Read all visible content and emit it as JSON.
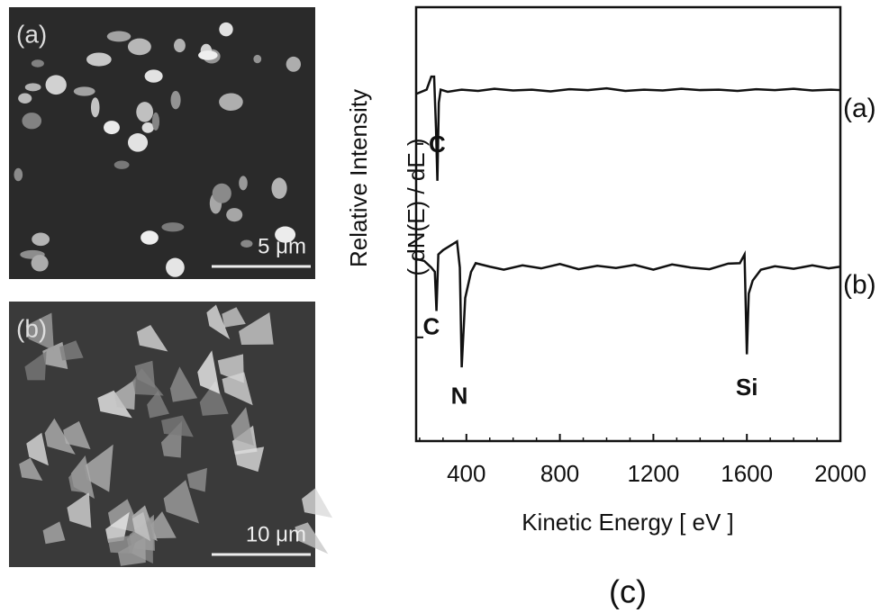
{
  "panels": [
    {
      "label": "(a)",
      "scale_bar": "5 μm"
    },
    {
      "label": "(b)",
      "scale_bar": "10 μm"
    }
  ],
  "chart_data": {
    "type": "line",
    "panel_label": "(c)",
    "x_label": "Kinetic Energy [ eV ]",
    "y_label": [
      "Relative Intensity",
      "( dN(E) / dE )"
    ],
    "xlim": [
      185,
      2000
    ],
    "xticks": [
      400,
      800,
      1200,
      1600,
      2000
    ],
    "xminorticks": [
      200,
      300,
      500,
      600,
      700,
      900,
      1000,
      1100,
      1300,
      1400,
      1500,
      1700,
      1800,
      1900
    ],
    "ylim": [
      0,
      100
    ],
    "yticks": [
      68.5,
      23.9
    ],
    "series": [
      {
        "name": "(a)",
        "color": "#111111",
        "x": [
          185,
          230,
          250,
          262,
          270,
          276,
          282,
          290,
          320,
          380,
          450,
          520,
          600,
          680,
          760,
          840,
          920,
          1000,
          1080,
          1160,
          1240,
          1320,
          1400,
          1480,
          1560,
          1640,
          1720,
          1800,
          1880,
          1960,
          2000
        ],
        "values": [
          80,
          81,
          84,
          84,
          72,
          60,
          78,
          81,
          80.5,
          81,
          80.7,
          81.2,
          80.8,
          81,
          80.6,
          81.1,
          80.9,
          81.3,
          80.7,
          81,
          80.8,
          81.2,
          80.9,
          81,
          80.7,
          81.1,
          80.9,
          81.2,
          80.8,
          81,
          80.9
        ]
      },
      {
        "name": "(b)",
        "color": "#111111",
        "x": [
          185,
          220,
          250,
          265,
          272,
          280,
          300,
          330,
          360,
          372,
          380,
          395,
          420,
          440,
          500,
          560,
          640,
          720,
          800,
          880,
          960,
          1040,
          1120,
          1200,
          1280,
          1360,
          1440,
          1520,
          1570,
          1590,
          1600,
          1608,
          1625,
          1660,
          1720,
          1800,
          1880,
          1950,
          2000
        ],
        "values": [
          42,
          41.5,
          40,
          39,
          30,
          43,
          44,
          45,
          46,
          40,
          17,
          33,
          39,
          41,
          40.2,
          39.5,
          40.5,
          39.8,
          40.8,
          39.6,
          40.4,
          39.9,
          40.6,
          39.5,
          40.7,
          40,
          39.6,
          40.9,
          41,
          43,
          20,
          34,
          37,
          39.5,
          40.3,
          39.7,
          40.5,
          39.8,
          40.2
        ]
      }
    ],
    "annotations": [
      {
        "text": "C",
        "x": 275,
        "y": 68
      },
      {
        "text": "C",
        "x": 250,
        "y": 26
      },
      {
        "text": "N",
        "x": 370,
        "y": 10
      },
      {
        "text": "Si",
        "x": 1600,
        "y": 12
      }
    ]
  }
}
